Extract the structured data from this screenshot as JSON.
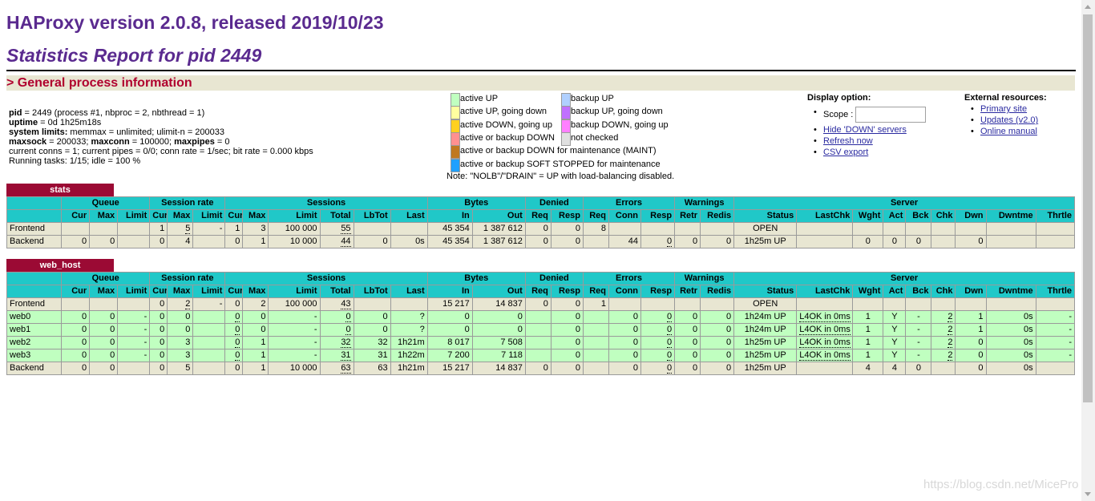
{
  "header": {
    "title": "HAProxy version 2.0.8, released 2019/10/23",
    "subtitle": "Statistics Report for pid 2449",
    "section": "> General process information"
  },
  "info": [
    {
      "label": "pid",
      "value": " = 2449 (process #1, nbproc = 2, nbthread = 1)"
    },
    {
      "label": "uptime",
      "value": " = 0d 1h25m18s"
    },
    {
      "label": "system limits:",
      "value": " memmax = unlimited; ulimit-n = 200033"
    },
    {
      "label": "maxsock",
      "value": " = 200033; ",
      "label2": "maxconn",
      "value2": " = 100000; ",
      "label3": "maxpipes",
      "value3": " = 0"
    },
    {
      "label": "",
      "value": "current conns = 1; current pipes = 0/0; conn rate = 1/sec; bit rate = 0.000 kbps"
    },
    {
      "label": "",
      "value": "Running tasks: 1/15; idle = 100 %"
    }
  ],
  "legend": {
    "left": [
      {
        "label": "active UP",
        "color": "#c0ffc0"
      },
      {
        "label": "active UP, going down",
        "color": "#ffffa0"
      },
      {
        "label": "active DOWN, going up",
        "color": "#ffd020"
      },
      {
        "label": "active or backup DOWN",
        "color": "#ff9090"
      },
      {
        "label": "active or backup DOWN for maintenance (MAINT)",
        "color": "#c07820"
      },
      {
        "label": "active or backup SOFT STOPPED for maintenance",
        "color": "#20a0ff"
      }
    ],
    "right": [
      {
        "label": "backup UP",
        "color": "#b0d0ff"
      },
      {
        "label": "backup UP, going down",
        "color": "#c070ff"
      },
      {
        "label": "backup DOWN, going up",
        "color": "#ff80ff"
      },
      {
        "label": "not checked",
        "color": "#e0e0e0"
      }
    ],
    "note": "Note: \"NOLB\"/\"DRAIN\" = UP with load-balancing disabled."
  },
  "display": {
    "title": "Display option:",
    "scope_label": "Scope :",
    "links": [
      "Hide 'DOWN' servers",
      "Refresh now",
      "CSV export"
    ]
  },
  "external": {
    "title": "External resources:",
    "links": [
      "Primary site",
      "Updates (v2.0)",
      "Online manual"
    ]
  },
  "columns": {
    "groups": [
      "Queue",
      "Session rate",
      "Sessions",
      "Bytes",
      "Denied",
      "Errors",
      "Warnings",
      "Server"
    ],
    "subs": [
      "Cur",
      "Max",
      "Limit",
      "Cur",
      "Max",
      "Limit",
      "Cur",
      "Max",
      "Limit",
      "Total",
      "LbTot",
      "Last",
      "In",
      "Out",
      "Req",
      "Resp",
      "Req",
      "Conn",
      "Resp",
      "Retr",
      "Redis",
      "Status",
      "LastChk",
      "Wght",
      "Act",
      "Bck",
      "Chk",
      "Dwn",
      "Dwntme",
      "Thrtle"
    ]
  },
  "proxies": [
    {
      "name": "stats",
      "rows": [
        {
          "type": "fe",
          "cells": [
            "Frontend",
            "",
            "",
            "",
            "1",
            "5",
            "-",
            "1",
            "3",
            "100 000",
            "55",
            "",
            "",
            "45 354",
            "1 387 612",
            "0",
            "0",
            "8",
            "",
            "",
            "",
            "",
            "OPEN",
            "",
            "",
            "",
            "",
            "",
            "",
            "",
            ""
          ]
        },
        {
          "type": "be",
          "cells": [
            "Backend",
            "0",
            "0",
            "",
            "0",
            "4",
            "",
            "0",
            "1",
            "10 000",
            "44",
            "0",
            "0s",
            "45 354",
            "1 387 612",
            "0",
            "0",
            "",
            "44",
            "0",
            "0",
            "0",
            "1h25m UP",
            "",
            "0",
            "0",
            "0",
            "",
            "0",
            "",
            ""
          ]
        }
      ]
    },
    {
      "name": "web_host",
      "rows": [
        {
          "type": "fe",
          "cells": [
            "Frontend",
            "",
            "",
            "",
            "0",
            "2",
            "-",
            "0",
            "2",
            "100 000",
            "43",
            "",
            "",
            "15 217",
            "14 837",
            "0",
            "0",
            "1",
            "",
            "",
            "",
            "",
            "OPEN",
            "",
            "",
            "",
            "",
            "",
            "",
            "",
            ""
          ]
        },
        {
          "type": "sv",
          "cells": [
            "web0",
            "0",
            "0",
            "-",
            "0",
            "0",
            "",
            "0",
            "0",
            "-",
            "0",
            "0",
            "?",
            "0",
            "0",
            "",
            "0",
            "",
            "0",
            "0",
            "0",
            "0",
            "1h24m UP",
            "L4OK in 0ms",
            "1",
            "Y",
            "-",
            "2",
            "1",
            "0s",
            "-"
          ]
        },
        {
          "type": "sv",
          "cells": [
            "web1",
            "0",
            "0",
            "-",
            "0",
            "0",
            "",
            "0",
            "0",
            "-",
            "0",
            "0",
            "?",
            "0",
            "0",
            "",
            "0",
            "",
            "0",
            "0",
            "0",
            "0",
            "1h24m UP",
            "L4OK in 0ms",
            "1",
            "Y",
            "-",
            "2",
            "1",
            "0s",
            "-"
          ]
        },
        {
          "type": "sv",
          "cells": [
            "web2",
            "0",
            "0",
            "-",
            "0",
            "3",
            "",
            "0",
            "1",
            "-",
            "32",
            "32",
            "1h21m",
            "8 017",
            "7 508",
            "",
            "0",
            "",
            "0",
            "0",
            "0",
            "0",
            "1h25m UP",
            "L4OK in 0ms",
            "1",
            "Y",
            "-",
            "2",
            "0",
            "0s",
            "-"
          ]
        },
        {
          "type": "sv",
          "cells": [
            "web3",
            "0",
            "0",
            "-",
            "0",
            "3",
            "",
            "0",
            "1",
            "-",
            "31",
            "31",
            "1h22m",
            "7 200",
            "7 118",
            "",
            "0",
            "",
            "0",
            "0",
            "0",
            "0",
            "1h25m UP",
            "L4OK in 0ms",
            "1",
            "Y",
            "-",
            "2",
            "0",
            "0s",
            "-"
          ]
        },
        {
          "type": "be",
          "cells": [
            "Backend",
            "0",
            "0",
            "",
            "0",
            "5",
            "",
            "0",
            "1",
            "10 000",
            "63",
            "63",
            "1h21m",
            "15 217",
            "14 837",
            "0",
            "0",
            "",
            "0",
            "0",
            "0",
            "0",
            "1h25m UP",
            "",
            "4",
            "4",
            "0",
            "",
            "0",
            "0s",
            ""
          ]
        }
      ]
    }
  ],
  "watermark": "https://blog.csdn.net/MicePro"
}
